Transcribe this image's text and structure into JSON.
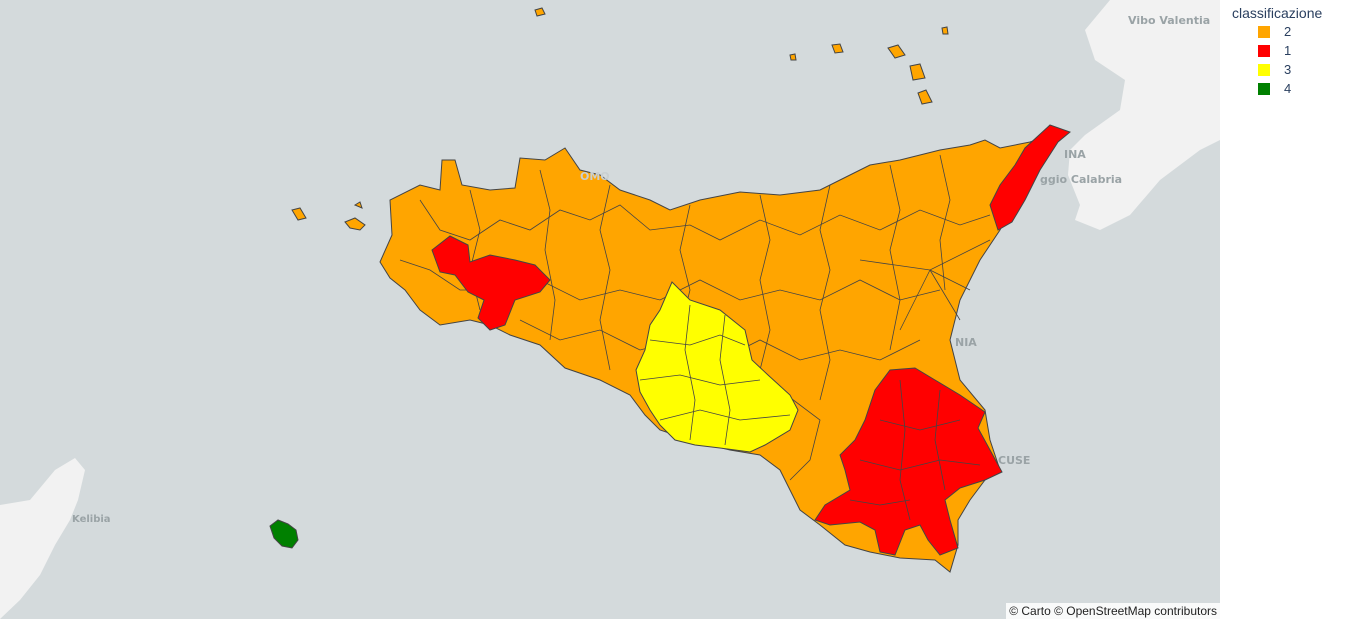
{
  "map": {
    "places": [
      {
        "name": "Vibo Valentia"
      },
      {
        "name": "INA"
      },
      {
        "name": "ggio Calabria"
      },
      {
        "name": "OMO"
      },
      {
        "name": "NIA"
      },
      {
        "name": "CUSE"
      },
      {
        "name": "Kelibia"
      }
    ],
    "attribution": "© Carto © OpenStreetMap contributors"
  },
  "legend": {
    "title": "classificazione",
    "items": [
      {
        "label": "2",
        "color": "#ffa500"
      },
      {
        "label": "1",
        "color": "#ff0000"
      },
      {
        "label": "3",
        "color": "#ffff00"
      },
      {
        "label": "4",
        "color": "#008000"
      }
    ]
  },
  "colors": {
    "water": "#d4dadc",
    "land": "#f2f2f2",
    "border": "#444444"
  }
}
